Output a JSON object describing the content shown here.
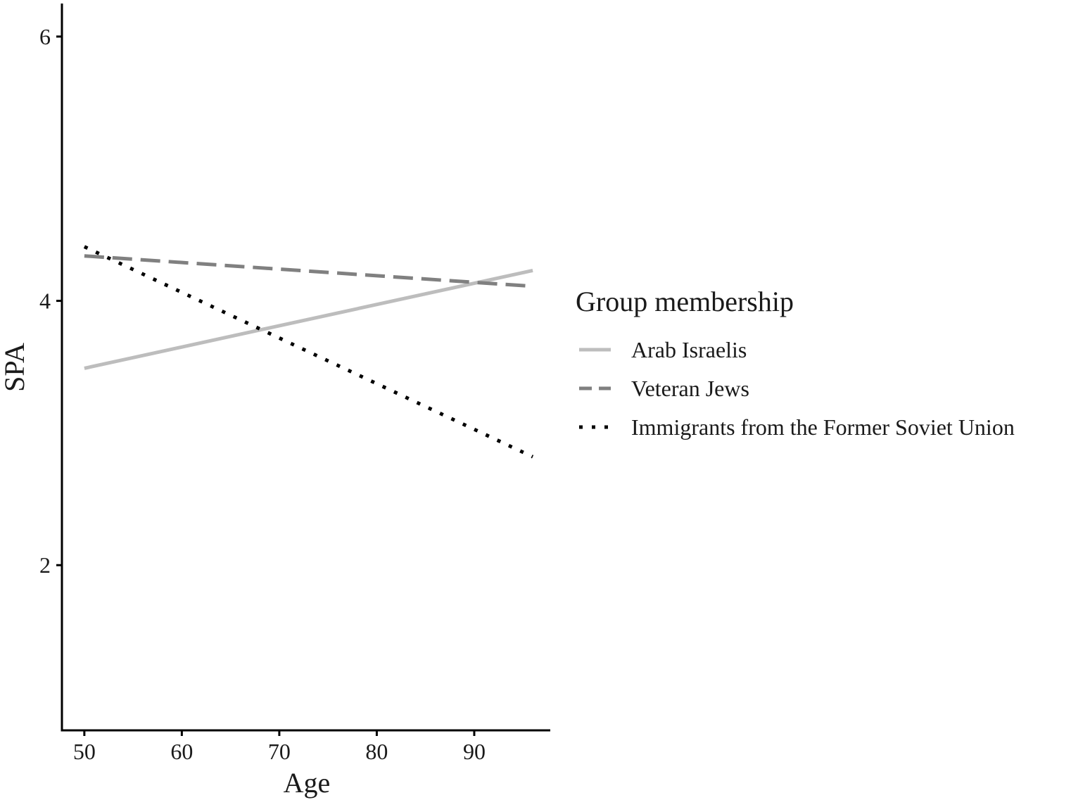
{
  "chart_data": {
    "type": "line",
    "xlabel": "Age",
    "ylabel": "SPA",
    "xlim": [
      47.7,
      97.8
    ],
    "ylim": [
      0.75,
      6.25
    ],
    "x_ticks": [
      50,
      60,
      70,
      80,
      90
    ],
    "y_ticks": [
      2,
      4,
      6
    ],
    "grid": false,
    "legend": {
      "title": "Group membership",
      "position": "right"
    },
    "series": [
      {
        "name": "Arab Israelis",
        "style": "solid",
        "color": "#bdbdbd",
        "x": [
          50,
          96
        ],
        "y": [
          3.49,
          4.23
        ]
      },
      {
        "name": "Veteran Jews",
        "style": "dashed",
        "color": "#808080",
        "x": [
          50,
          96
        ],
        "y": [
          4.34,
          4.11
        ]
      },
      {
        "name": "Immigrants from the Former Soviet Union",
        "style": "dotted",
        "color": "#000000",
        "x": [
          50,
          96
        ],
        "y": [
          4.41,
          2.82
        ]
      }
    ]
  }
}
